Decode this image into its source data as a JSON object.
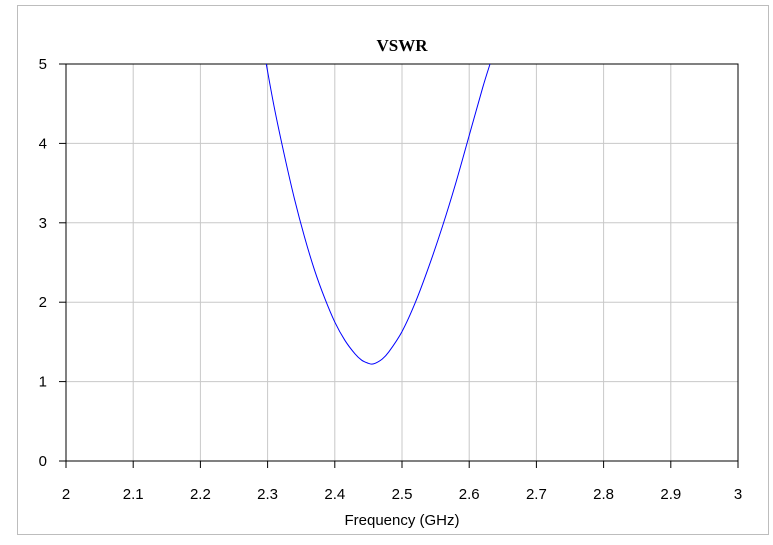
{
  "chart_data": {
    "type": "line",
    "title": "VSWR",
    "xlabel": "Frequency (GHz)",
    "ylabel": "",
    "xlim": [
      2,
      3
    ],
    "ylim": [
      0,
      5
    ],
    "x_ticks": [
      2,
      2.1,
      2.2,
      2.3,
      2.4,
      2.5,
      2.6,
      2.7,
      2.8,
      2.9,
      3
    ],
    "x_tick_labels": [
      "2",
      "2.1",
      "2.2",
      "2.3",
      "2.4",
      "2.5",
      "2.6",
      "2.7",
      "2.8",
      "2.9",
      "3"
    ],
    "y_ticks": [
      0,
      1,
      2,
      3,
      4,
      5
    ],
    "y_tick_labels": [
      "0",
      "1",
      "2",
      "3",
      "4",
      "5"
    ],
    "grid": true,
    "legend": "none",
    "series": [
      {
        "color": "#0000ff",
        "x": [
          2.298,
          2.31,
          2.325,
          2.34,
          2.355,
          2.37,
          2.385,
          2.4,
          2.415,
          2.43,
          2.44,
          2.45,
          2.455,
          2.46,
          2.47,
          2.48,
          2.5,
          2.52,
          2.54,
          2.56,
          2.58,
          2.6,
          2.62,
          2.631
        ],
        "y": [
          5.0,
          4.45,
          3.85,
          3.3,
          2.82,
          2.4,
          2.05,
          1.75,
          1.52,
          1.35,
          1.27,
          1.23,
          1.22,
          1.23,
          1.28,
          1.37,
          1.63,
          2.0,
          2.45,
          2.95,
          3.5,
          4.1,
          4.7,
          5.0
        ]
      }
    ]
  }
}
